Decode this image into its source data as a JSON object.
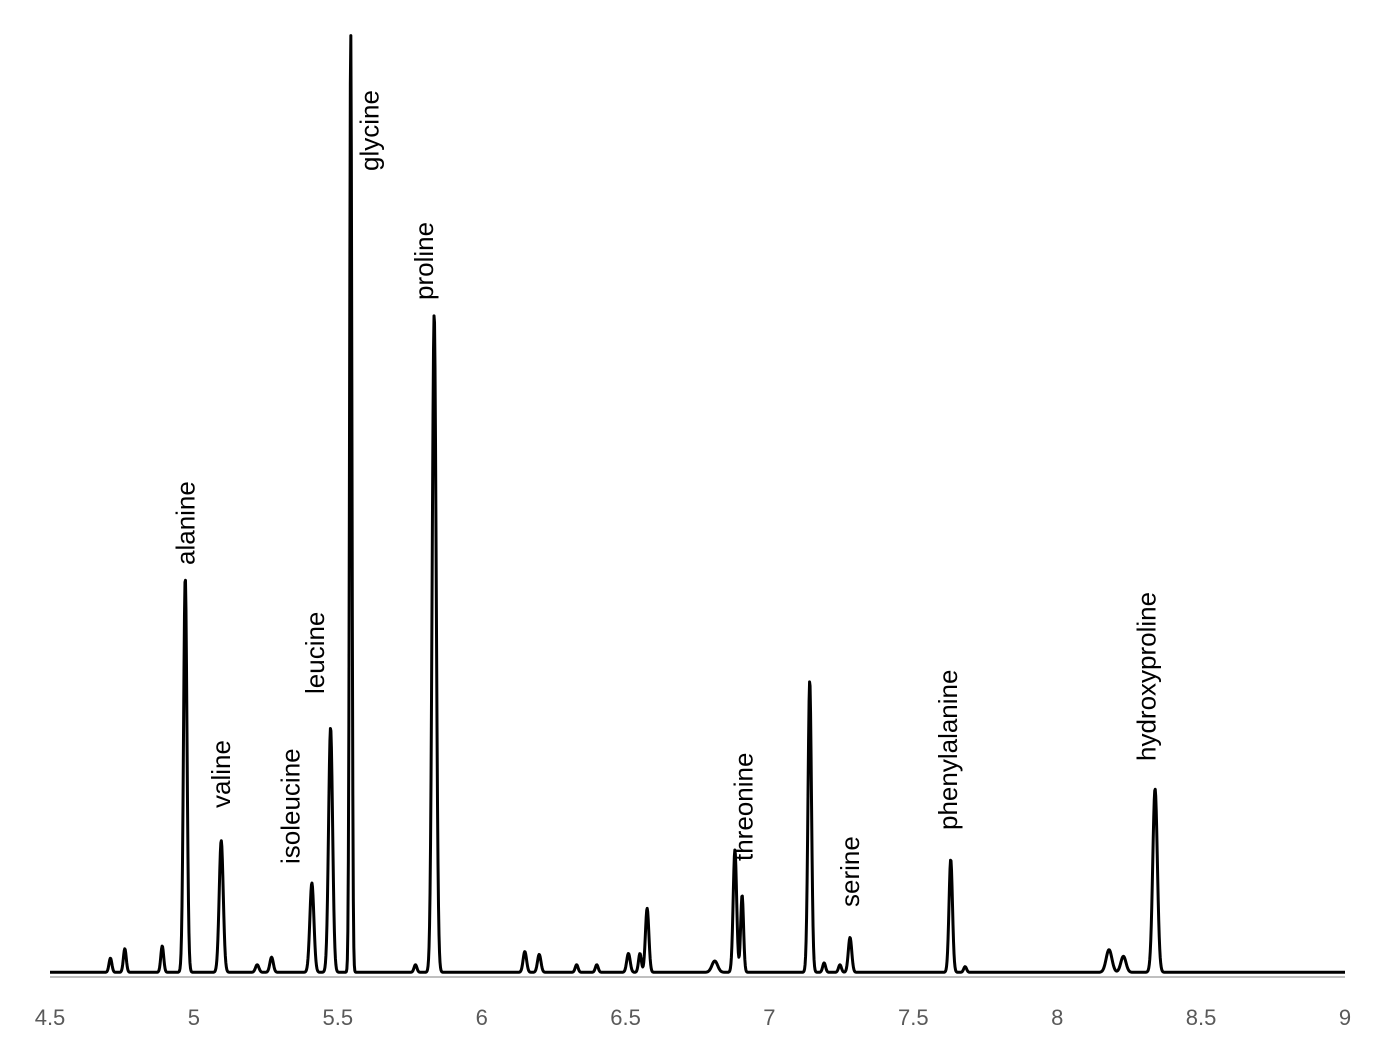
{
  "chart_data": {
    "type": "line",
    "title": "",
    "xlabel": "",
    "ylabel": "",
    "xlim": [
      4.5,
      9
    ],
    "ylim": [
      0,
      100
    ],
    "x_ticks": [
      "4.5",
      "5",
      "5.5",
      "6",
      "6.5",
      "7",
      "7.5",
      "8",
      "8.5",
      "9"
    ],
    "grid": false,
    "legend": "none",
    "line_color": "#000000",
    "baseline": 0.5,
    "peaks": [
      {
        "x": 4.71,
        "h": 1.5,
        "w": 0.005
      },
      {
        "x": 4.76,
        "h": 2.5,
        "w": 0.005
      },
      {
        "x": 4.89,
        "h": 2.8,
        "w": 0.005
      },
      {
        "x": 4.97,
        "h": 42,
        "w": 0.006
      },
      {
        "x": 5.095,
        "h": 14,
        "w": 0.007
      },
      {
        "x": 5.22,
        "h": 0.8,
        "w": 0.006
      },
      {
        "x": 5.27,
        "h": 1.6,
        "w": 0.006
      },
      {
        "x": 5.41,
        "h": 9.5,
        "w": 0.007
      },
      {
        "x": 5.475,
        "h": 26,
        "w": 0.007
      },
      {
        "x": 5.545,
        "h": 100,
        "w": 0.004
      },
      {
        "x": 5.77,
        "h": 0.8,
        "w": 0.005
      },
      {
        "x": 5.835,
        "h": 70,
        "w": 0.007
      },
      {
        "x": 6.15,
        "h": 2.2,
        "w": 0.006
      },
      {
        "x": 6.2,
        "h": 1.9,
        "w": 0.006
      },
      {
        "x": 6.33,
        "h": 0.8,
        "w": 0.005
      },
      {
        "x": 6.4,
        "h": 0.8,
        "w": 0.005
      },
      {
        "x": 6.51,
        "h": 2.0,
        "w": 0.006
      },
      {
        "x": 6.55,
        "h": 2.0,
        "w": 0.005
      },
      {
        "x": 6.575,
        "h": 6.8,
        "w": 0.006
      },
      {
        "x": 6.81,
        "h": 1.2,
        "w": 0.01
      },
      {
        "x": 6.88,
        "h": 13,
        "w": 0.006
      },
      {
        "x": 6.905,
        "h": 8.2,
        "w": 0.005
      },
      {
        "x": 7.14,
        "h": 31,
        "w": 0.006
      },
      {
        "x": 7.19,
        "h": 1.0,
        "w": 0.005
      },
      {
        "x": 7.245,
        "h": 0.8,
        "w": 0.005
      },
      {
        "x": 7.28,
        "h": 3.7,
        "w": 0.006
      },
      {
        "x": 7.63,
        "h": 12,
        "w": 0.006
      },
      {
        "x": 7.68,
        "h": 0.6,
        "w": 0.005
      },
      {
        "x": 8.18,
        "h": 2.4,
        "w": 0.01
      },
      {
        "x": 8.23,
        "h": 1.7,
        "w": 0.009
      },
      {
        "x": 8.34,
        "h": 19.5,
        "w": 0.008
      }
    ],
    "annotations": [
      {
        "text": "alanine",
        "x": 4.97
      },
      {
        "text": "valine",
        "x": 5.095
      },
      {
        "text": "isoleucine",
        "x": 5.335
      },
      {
        "text": "leucine",
        "x": 5.42
      },
      {
        "text": "glycine",
        "x": 5.61
      },
      {
        "text": "proline",
        "x": 5.8
      },
      {
        "text": "threonine",
        "x": 6.91
      },
      {
        "text": "serine",
        "x": 7.28
      },
      {
        "text": "phenylalanine",
        "x": 7.62
      },
      {
        "text": "hydroxyproline",
        "x": 8.31
      }
    ]
  }
}
